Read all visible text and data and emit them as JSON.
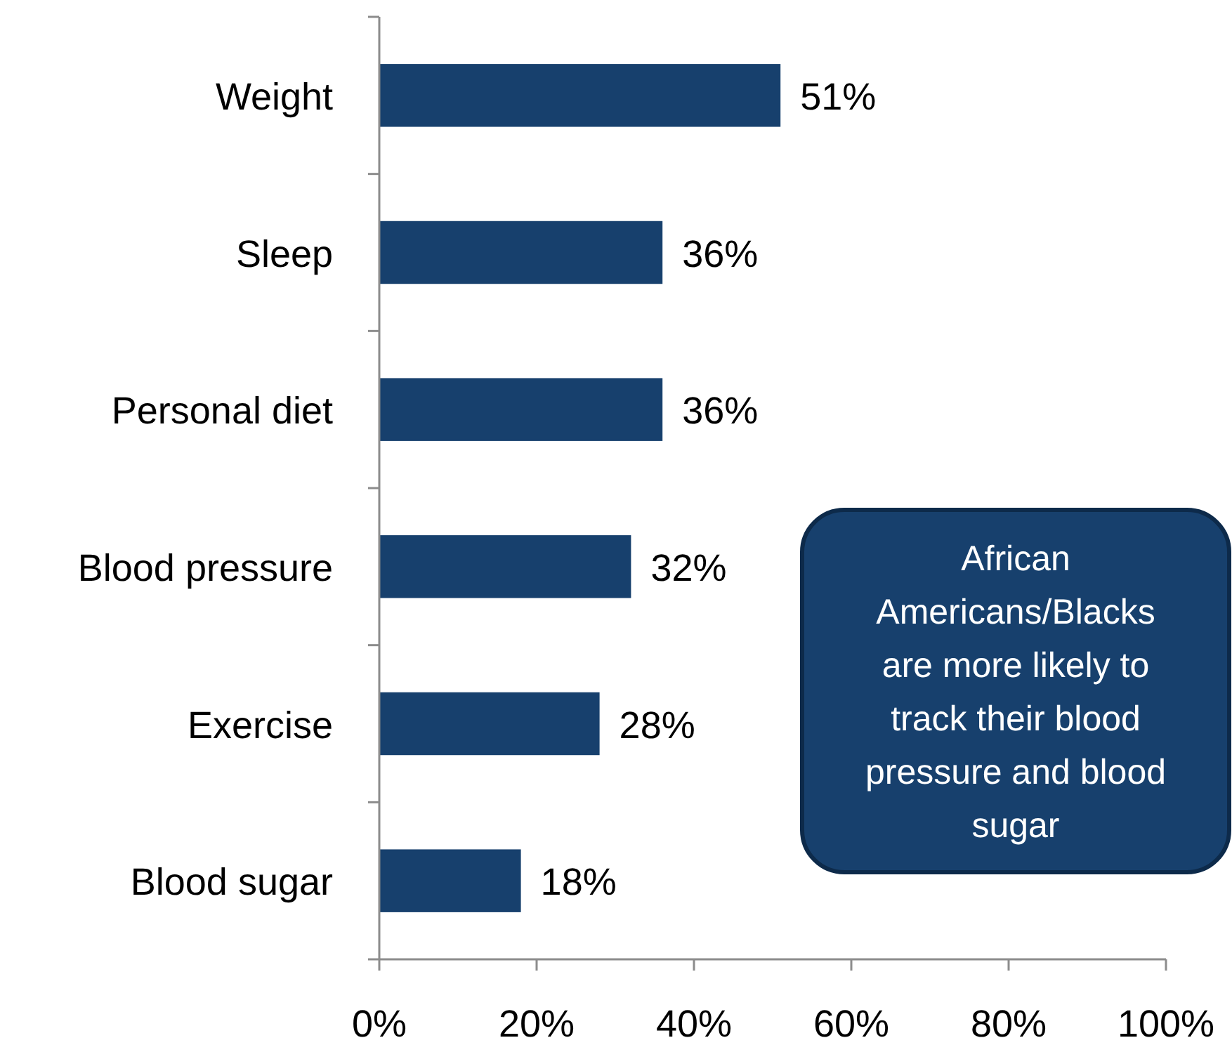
{
  "chart_data": {
    "type": "bar",
    "orientation": "horizontal",
    "categories": [
      "Weight",
      "Sleep",
      "Personal diet",
      "Blood pressure",
      "Exercise",
      "Blood sugar"
    ],
    "values": [
      51,
      36,
      36,
      32,
      28,
      18
    ],
    "value_labels": [
      "51%",
      "36%",
      "36%",
      "32%",
      "28%",
      "18%"
    ],
    "color": "#17406d",
    "xlim": [
      0,
      100
    ],
    "xticks": [
      {
        "value": 0,
        "label": "0%"
      },
      {
        "value": 20,
        "label": "20%"
      },
      {
        "value": 40,
        "label": "40%"
      },
      {
        "value": 60,
        "label": "60%"
      },
      {
        "value": 80,
        "label": "80%"
      },
      {
        "value": 100,
        "label": "100%"
      }
    ],
    "grid": false,
    "annotations": [
      "African Americans/Blacks are more likely to track their blood pressure and blood sugar"
    ]
  }
}
